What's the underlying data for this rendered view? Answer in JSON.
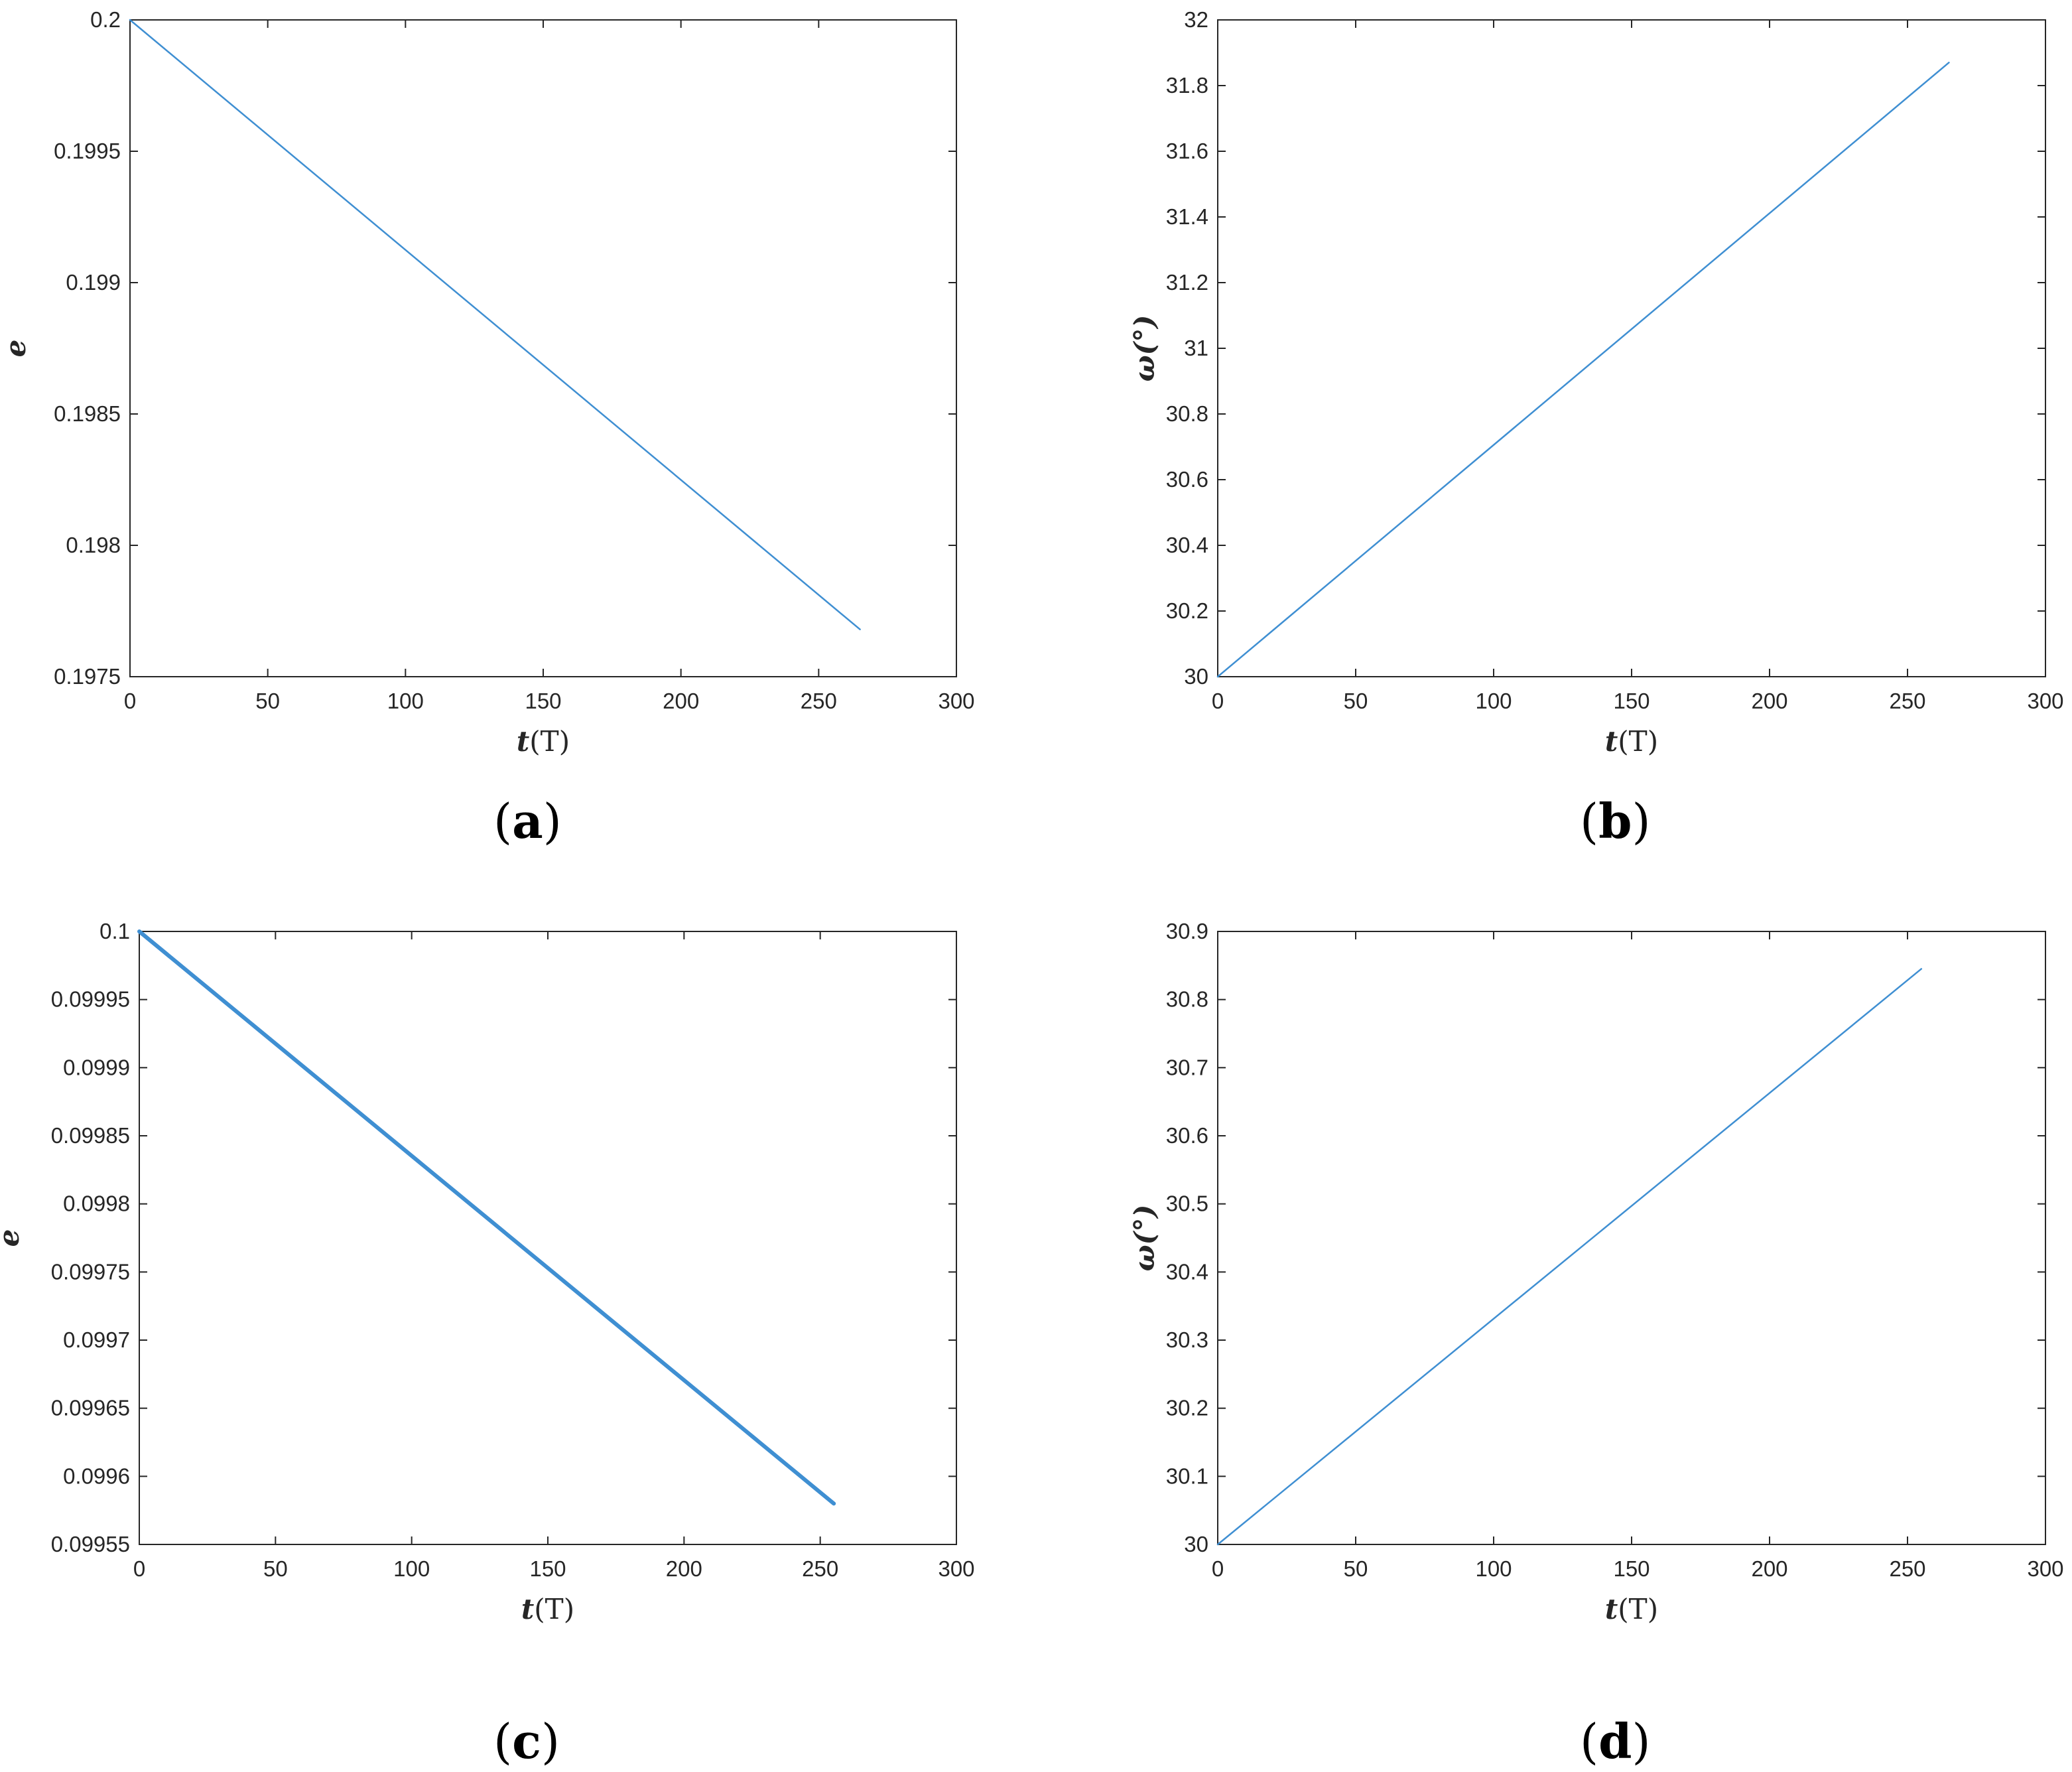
{
  "panels": [
    {
      "label": "(a)",
      "label_letter": "a",
      "chart_data": {
        "type": "line",
        "xlabel_var": "t",
        "xlabel_unit": "(T)",
        "ylabel": "e",
        "xlim": [
          0,
          300
        ],
        "ylim": [
          0.1975,
          0.2
        ],
        "xticks": [
          "0",
          "50",
          "100",
          "150",
          "200",
          "250",
          "300"
        ],
        "yticks": [
          "0.1975",
          "0.198",
          "0.1985",
          "0.199",
          "0.1995",
          "0.2"
        ],
        "series": [
          {
            "x": [
              0,
              265
            ],
            "y": [
              0.2,
              0.19768
            ]
          }
        ],
        "line_color": "#3f8fd2",
        "grid": false
      }
    },
    {
      "label": "(b)",
      "label_letter": "b",
      "chart_data": {
        "type": "line",
        "xlabel_var": "t",
        "xlabel_unit": "(T)",
        "ylabel": "ω(°)",
        "xlim": [
          0,
          300
        ],
        "ylim": [
          30,
          32
        ],
        "xticks": [
          "0",
          "50",
          "100",
          "150",
          "200",
          "250",
          "300"
        ],
        "yticks": [
          "30",
          "30.2",
          "30.4",
          "30.6",
          "30.8",
          "31",
          "31.2",
          "31.4",
          "31.6",
          "31.8",
          "32"
        ],
        "series": [
          {
            "x": [
              0,
              265
            ],
            "y": [
              30,
              31.87
            ]
          }
        ],
        "line_color": "#3f8fd2",
        "grid": false
      }
    },
    {
      "label": "(c)",
      "label_letter": "c",
      "chart_data": {
        "type": "line",
        "xlabel_var": "t",
        "xlabel_unit": "(T)",
        "ylabel": "e",
        "xlim": [
          0,
          300
        ],
        "ylim": [
          0.09955,
          0.1
        ],
        "xticks": [
          "0",
          "50",
          "100",
          "150",
          "200",
          "250",
          "300"
        ],
        "yticks": [
          "0.09955",
          "0.0996",
          "0.09965",
          "0.0997",
          "0.09975",
          "0.0998",
          "0.09985",
          "0.0999",
          "0.09995",
          "0.1"
        ],
        "series": [
          {
            "x": [
              0,
              255
            ],
            "y": [
              0.1,
              0.09958
            ]
          }
        ],
        "line_color": "#3f8fd2",
        "grid": false
      }
    },
    {
      "label": "(d)",
      "label_letter": "d",
      "chart_data": {
        "type": "line",
        "xlabel_var": "t",
        "xlabel_unit": "(T)",
        "ylabel": "ω(°)",
        "xlim": [
          0,
          300
        ],
        "ylim": [
          30,
          30.9
        ],
        "xticks": [
          "0",
          "50",
          "100",
          "150",
          "200",
          "250",
          "300"
        ],
        "yticks": [
          "30",
          "30.1",
          "30.2",
          "30.3",
          "30.4",
          "30.5",
          "30.6",
          "30.7",
          "30.8",
          "30.9"
        ],
        "series": [
          {
            "x": [
              0,
              255
            ],
            "y": [
              30,
              30.845
            ]
          }
        ],
        "line_color": "#3f8fd2",
        "grid": false
      }
    }
  ]
}
